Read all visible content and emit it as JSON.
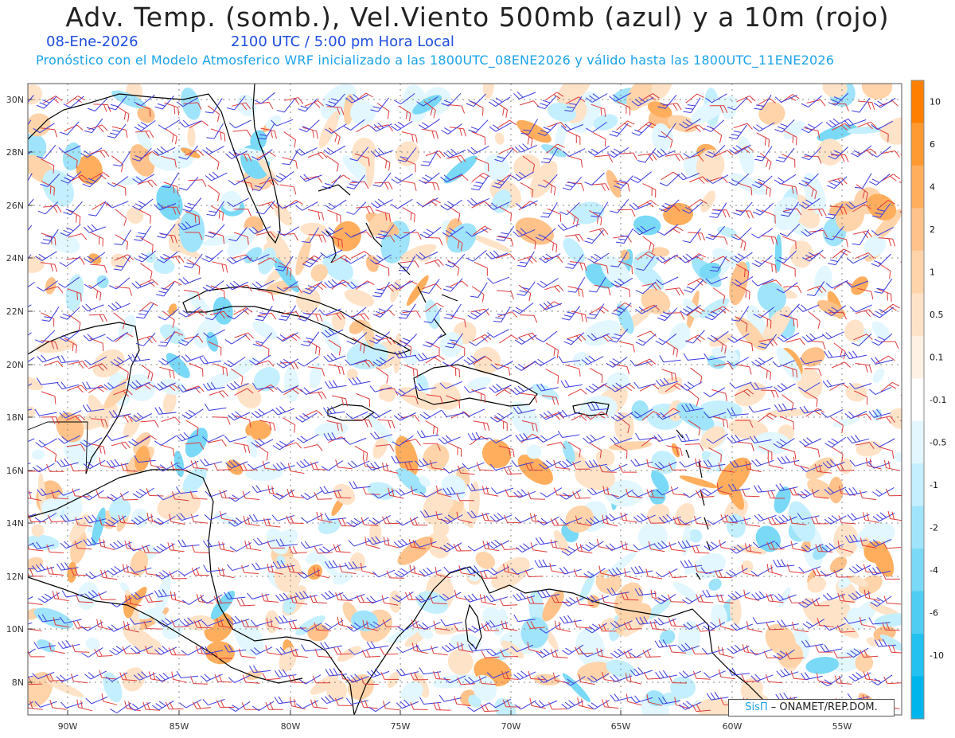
{
  "header": {
    "title": "Adv. Temp. (somb.), Vel.Viento 500mb (azul) y a 10m (rojo)",
    "date": "08-Ene-2026",
    "valid_time": "2100 UTC / 5:00 pm Hora Local",
    "description": "Pronóstico con el Modelo Atmosferico WRF inicializado a las 1800UTC_08ENE2026 y válido hasta las  1800UTC_11ENE2026"
  },
  "map": {
    "lat_labels": [
      "30N",
      "28N",
      "26N",
      "24N",
      "22N",
      "20N",
      "18N",
      "16N",
      "14N",
      "12N",
      "10N",
      "8N"
    ],
    "lon_labels": [
      "90W",
      "85W",
      "80W",
      "75W",
      "70W",
      "65W",
      "60W",
      "55W"
    ],
    "wind_500mb_color": "#3a3ae0",
    "wind_10m_color": "#e03a3a"
  },
  "colorbar": {
    "labels": [
      "10",
      "6",
      "4",
      "2",
      "1",
      "0.5",
      "0.1",
      "-0.1",
      "-0.5",
      "-1",
      "-2",
      "-4",
      "-6",
      "-10"
    ],
    "colors": [
      "#ff8000",
      "#ff9a33",
      "#ffae5e",
      "#ffc28a",
      "#ffd4aa",
      "#ffe3c8",
      "#fff1e4",
      "#ffffff",
      "#e2f7ff",
      "#c4efff",
      "#a0e4fb",
      "#7ad9f6",
      "#4fcdf2",
      "#22c1ef",
      "#00b5ec"
    ]
  },
  "credit": {
    "brand": "SisΠ",
    "text": "– ONAMET/REP.DOM."
  }
}
